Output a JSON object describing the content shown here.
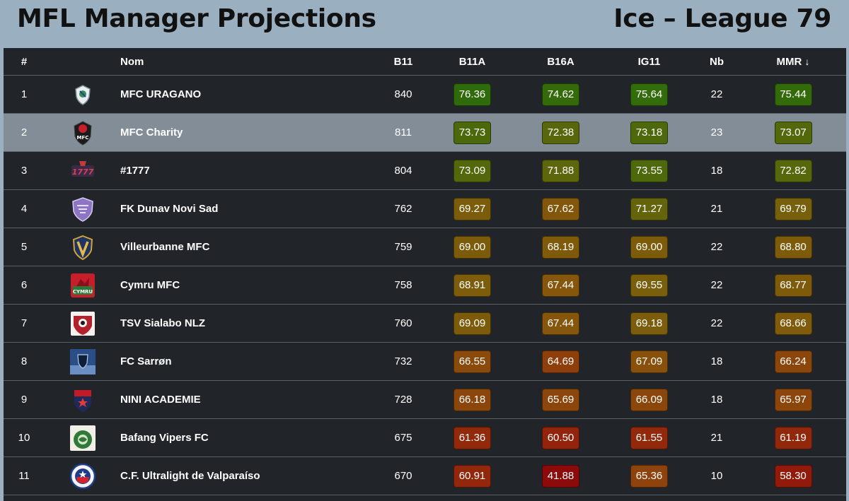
{
  "header": {
    "title": "MFL Manager Projections",
    "league": "Ice – League 79"
  },
  "table": {
    "columns": {
      "rank": "#",
      "name": "Nom",
      "b11": "B11",
      "b11a": "B11A",
      "b16a": "B16A",
      "ig11": "IG11",
      "nb": "Nb",
      "mmr": "MMR",
      "mmr_sort": "↓"
    },
    "highlighted_row": 2,
    "rows": [
      {
        "rank": "1",
        "name": "MFC URAGANO",
        "logo_icon": "uragano-crest-icon",
        "b11": "840",
        "b11a": "76.36",
        "b16a": "74.62",
        "ig11": "75.64",
        "nb": "22",
        "mmr": "75.44",
        "colors": {
          "b11a": "#2f6b0a",
          "b16a": "#356a0a",
          "ig11": "#336c0a",
          "mmr": "#336b0a"
        }
      },
      {
        "rank": "2",
        "name": "MFC Charity",
        "logo_icon": "charity-crest-icon",
        "b11": "811",
        "b11a": "73.73",
        "b16a": "72.38",
        "ig11": "73.18",
        "nb": "23",
        "mmr": "73.07",
        "colors": {
          "b11a": "#4b690b",
          "b16a": "#58670b",
          "ig11": "#4e690b",
          "mmr": "#52680b"
        }
      },
      {
        "rank": "3",
        "name": "#1777",
        "logo_icon": "1777-crest-icon",
        "b11": "804",
        "b11a": "73.09",
        "b16a": "71.88",
        "ig11": "73.55",
        "nb": "18",
        "mmr": "72.82",
        "colors": {
          "b11a": "#52680b",
          "b16a": "#5e660b",
          "ig11": "#4d690b",
          "mmr": "#55680b"
        }
      },
      {
        "rank": "4",
        "name": "FK Dunav Novi Sad",
        "logo_icon": "dunav-crest-icon",
        "b11": "762",
        "b11a": "69.27",
        "b16a": "67.62",
        "ig11": "71.27",
        "nb": "21",
        "mmr": "69.79",
        "colors": {
          "b11a": "#7a5c0b",
          "b16a": "#82560b",
          "ig11": "#63640b",
          "mmr": "#77600b"
        }
      },
      {
        "rank": "5",
        "name": "Villeurbanne MFC",
        "logo_icon": "villeurbanne-crest-icon",
        "b11": "759",
        "b11a": "69.00",
        "b16a": "68.19",
        "ig11": "69.00",
        "nb": "22",
        "mmr": "68.80",
        "colors": {
          "b11a": "#7c5c0b",
          "b16a": "#805a0b",
          "ig11": "#7c5c0b",
          "mmr": "#7e5b0b"
        }
      },
      {
        "rank": "6",
        "name": "Cymru MFC",
        "logo_icon": "cymru-crest-icon",
        "b11": "758",
        "b11a": "68.91",
        "b16a": "67.44",
        "ig11": "69.55",
        "nb": "22",
        "mmr": "68.77",
        "colors": {
          "b11a": "#7d5c0b",
          "b16a": "#85560b",
          "ig11": "#795e0b",
          "mmr": "#7e5b0b"
        }
      },
      {
        "rank": "7",
        "name": "TSV Sialabo NLZ",
        "logo_icon": "sialabo-crest-icon",
        "b11": "760",
        "b11a": "69.09",
        "b16a": "67.44",
        "ig11": "69.18",
        "nb": "22",
        "mmr": "68.66",
        "colors": {
          "b11a": "#7c5c0b",
          "b16a": "#85560b",
          "ig11": "#7b5d0b",
          "mmr": "#7f5b0b"
        }
      },
      {
        "rank": "8",
        "name": "FC Sarrøn",
        "logo_icon": "sarron-crest-icon",
        "b11": "732",
        "b11a": "66.55",
        "b16a": "64.69",
        "ig11": "67.09",
        "nb": "18",
        "mmr": "66.24",
        "colors": {
          "b11a": "#8a4a0b",
          "b16a": "#8f3f0b",
          "ig11": "#87510b",
          "mmr": "#8b470b"
        }
      },
      {
        "rank": "9",
        "name": "NINI ACADEMIE",
        "logo_icon": "nini-crest-icon",
        "b11": "728",
        "b11a": "66.18",
        "b16a": "65.69",
        "ig11": "66.09",
        "nb": "18",
        "mmr": "65.97",
        "colors": {
          "b11a": "#8b470b",
          "b16a": "#8c450b",
          "ig11": "#8b470b",
          "mmr": "#8c460b"
        }
      },
      {
        "rank": "10",
        "name": "Bafang Vipers FC",
        "logo_icon": "bafang-crest-icon",
        "b11": "675",
        "b11a": "61.36",
        "b16a": "60.50",
        "ig11": "61.55",
        "nb": "21",
        "mmr": "61.19",
        "colors": {
          "b11a": "#92290b",
          "b16a": "#93240b",
          "ig11": "#92290b",
          "mmr": "#92280b"
        }
      },
      {
        "rank": "11",
        "name": "C.F. Ultralight de Valparaíso",
        "logo_icon": "valparaiso-crest-icon",
        "b11": "670",
        "b11a": "60.91",
        "b16a": "41.88",
        "ig11": "65.36",
        "nb": "10",
        "mmr": "58.30",
        "colors": {
          "b11a": "#92270b",
          "b16a": "#8c0a0a",
          "ig11": "#8d430b",
          "mmr": "#921a0b"
        }
      }
    ]
  }
}
